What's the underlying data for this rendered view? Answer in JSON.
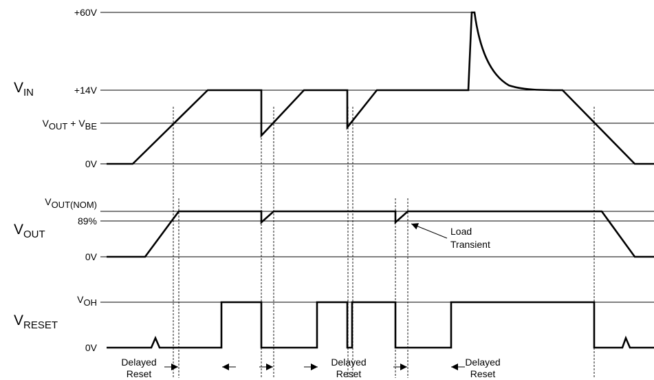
{
  "signals": {
    "vin": {
      "main": "V",
      "sub": "IN"
    },
    "vout": {
      "main": "V",
      "sub": "OUT"
    },
    "vreset": {
      "main": "V",
      "sub": "RESET"
    }
  },
  "levels": {
    "plus60": "+60V",
    "plus14": "+14V",
    "vout_vbe": {
      "v1": "V",
      "s1": "OUT",
      "mid": " + V",
      "s2": "BE"
    },
    "vin_zero": "0V",
    "vout_nom": {
      "main": "V",
      "sub": "OUT(NOM)"
    },
    "pct89": "89%",
    "vout_zero": "0V",
    "voh": {
      "main": "V",
      "sub": "OH"
    },
    "reset_zero": "0V"
  },
  "annotations": {
    "load_transient": [
      "Load",
      "Transient"
    ],
    "delayed_reset_1": [
      "Delayed",
      "Reset"
    ],
    "delayed_reset_2": [
      "Delayed",
      "Reset"
    ],
    "delayed_reset_3": [
      "Delayed",
      "Reset"
    ]
  }
}
